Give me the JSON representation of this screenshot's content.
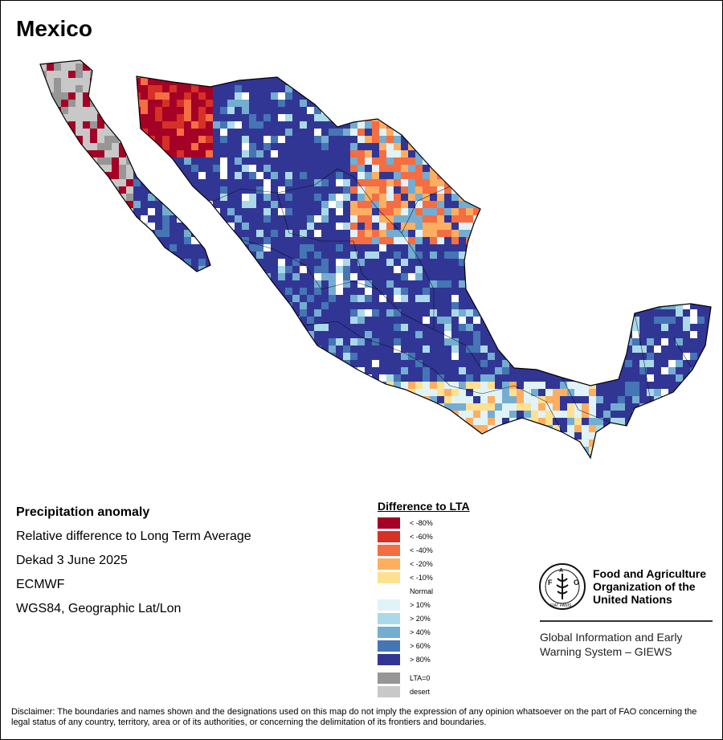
{
  "title": "Mexico",
  "info": {
    "heading": "Precipitation anomaly",
    "line1": "Relative difference to Long Term Average",
    "line2": "Dekad 3 June 2025",
    "line3": "ECMWF",
    "line4": "WGS84, Geographic Lat/Lon"
  },
  "legend": {
    "title": "Difference to LTA",
    "items": [
      {
        "label": "< -80%",
        "color": "#a50026"
      },
      {
        "label": "< -60%",
        "color": "#d73027"
      },
      {
        "label": "< -40%",
        "color": "#f46d43"
      },
      {
        "label": "< -20%",
        "color": "#fdae61"
      },
      {
        "label": "< -10%",
        "color": "#fee090"
      },
      {
        "label": "Normal",
        "color": "#ffffff"
      },
      {
        "label": "> 10%",
        "color": "#e0f3f8"
      },
      {
        "label": "> 20%",
        "color": "#abd9e9"
      },
      {
        "label": "> 40%",
        "color": "#74add1"
      },
      {
        "label": "> 60%",
        "color": "#4575b4"
      },
      {
        "label": "> 80%",
        "color": "#313695"
      }
    ],
    "extra": [
      {
        "label": "LTA=0",
        "color": "#969696"
      },
      {
        "label": "desert",
        "color": "#c8c8c8"
      }
    ]
  },
  "fao": {
    "logo_text": "FAO",
    "logo_motto": "FIAT PANIS",
    "name_line1": "Food and Agriculture",
    "name_line2": "Organization of the",
    "name_line3": "United Nations",
    "giews_line1": "Global Information and Early",
    "giews_line2": "Warning System – GIEWS"
  },
  "disclaimer": "Disclaimer: The boundaries and names shown and the designations used on this map do not imply the expression of any opinion whatsoever on the part of FAO concerning the legal status of any country, territory, area or of its authorities, or concerning the delimitation of its frontiers and boundaries."
}
